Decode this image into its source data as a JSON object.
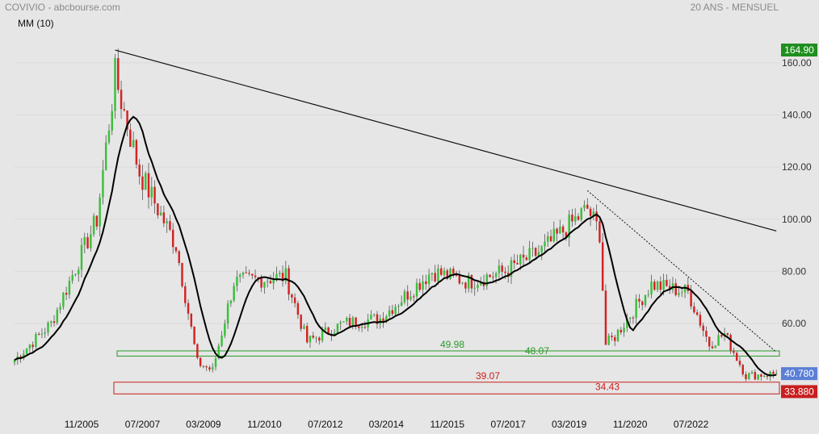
{
  "header": {
    "left": "COVIVIO - abcbourse.com",
    "right": "20 ANS - MENSUEL",
    "indicator": "MM (10)"
  },
  "chart_data": {
    "type": "candlestick",
    "ylim": [
      30,
      168
    ],
    "yticks": [
      60,
      80,
      100,
      120,
      140,
      160
    ],
    "ytick_labels": [
      "60.00",
      "80.00",
      "100.00",
      "120.00",
      "140.00",
      "160.00"
    ],
    "xrange": [
      "2004-01",
      "2024-12"
    ],
    "xticks": [
      "2005-11",
      "2007-07",
      "2009-03",
      "2010-11",
      "2012-07",
      "2014-03",
      "2015-11",
      "2017-07",
      "2019-03",
      "2020-11",
      "2022-07"
    ],
    "xtick_labels": [
      "11/2005",
      "07/2007",
      "03/2009",
      "11/2010",
      "07/2012",
      "03/2014",
      "11/2015",
      "07/2017",
      "03/2019",
      "11/2020",
      "07/2022"
    ],
    "price_badges": [
      {
        "label": "164.90",
        "value": 164.9,
        "color": "#1f8f1f"
      },
      {
        "label": "40.780",
        "value": 40.78,
        "color": "#5b7fd6"
      },
      {
        "label": "33.880",
        "value": 33.88,
        "color": "#c81e1e"
      }
    ],
    "support_zones": [
      {
        "low": 47.5,
        "high": 49.5,
        "color": "#2a9a2a",
        "labels": [
          "49.98",
          "48.07"
        ]
      },
      {
        "low": 33.0,
        "high": 37.5,
        "color": "#c81e1e",
        "labels": [
          "39.07",
          "34.43"
        ]
      }
    ],
    "trendlines": [
      {
        "from": [
          "2006-10",
          164.9
        ],
        "to": [
          "2024-11",
          95.5
        ],
        "style": "solid"
      },
      {
        "from": [
          "2019-09",
          111
        ],
        "to": [
          "2024-11",
          49
        ],
        "style": "dotted"
      }
    ],
    "key_points": {
      "dates": [
        "2004-01",
        "2005-01",
        "2006-04",
        "2006-10",
        "2007-06",
        "2008-06",
        "2009-01",
        "2009-06",
        "2010-01",
        "2011-06",
        "2012-01",
        "2013-01",
        "2014-01",
        "2015-06",
        "2016-06",
        "2017-06",
        "2018-06",
        "2019-09",
        "2020-01",
        "2020-03",
        "2020-06",
        "2021-06",
        "2022-06",
        "2023-01",
        "2023-06",
        "2024-01",
        "2024-11"
      ],
      "close": [
        46,
        60,
        100,
        155,
        118,
        90,
        45,
        42,
        76,
        78,
        53,
        60,
        62,
        80,
        76,
        80,
        88,
        104,
        95,
        52,
        55,
        75,
        72,
        52,
        56,
        40,
        40.78
      ]
    },
    "series": [
      {
        "name": "MM (10)",
        "style": "line",
        "color": "#000000"
      }
    ]
  }
}
